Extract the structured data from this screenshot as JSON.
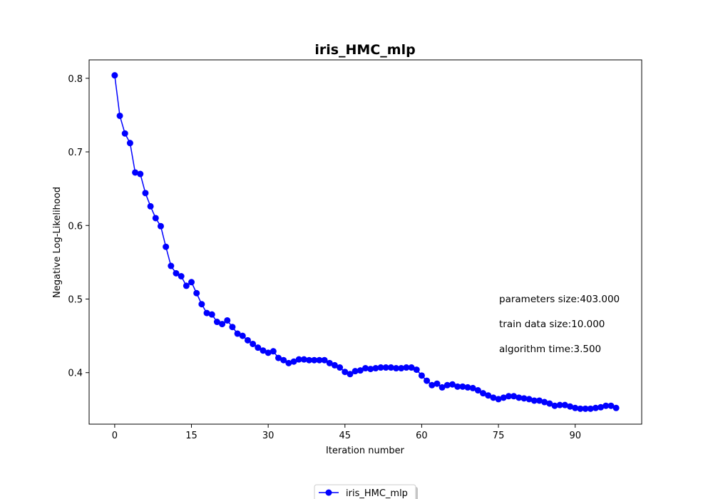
{
  "chart_data": {
    "type": "line",
    "title": "iris_HMC_mlp",
    "xlabel": "Iteration number",
    "ylabel": "Negative Log-Likelihood",
    "xlim": [
      -5,
      103
    ],
    "ylim": [
      0.33,
      0.825
    ],
    "xticks": [
      0,
      15,
      30,
      45,
      60,
      75,
      90
    ],
    "yticks": [
      0.4,
      0.5,
      0.6,
      0.7,
      0.8
    ],
    "ytick_labels": [
      "0.4",
      "0.5",
      "0.6",
      "0.7",
      "0.8"
    ],
    "grid": false,
    "legend_placement": "bottom-center",
    "series": [
      {
        "name": "iris_HMC_mlp",
        "color": "#0000ff",
        "marker": "circle",
        "x": [
          0,
          1,
          2,
          3,
          4,
          5,
          6,
          7,
          8,
          9,
          10,
          11,
          12,
          13,
          14,
          15,
          16,
          17,
          18,
          19,
          20,
          21,
          22,
          23,
          24,
          25,
          26,
          27,
          28,
          29,
          30,
          31,
          32,
          33,
          34,
          35,
          36,
          37,
          38,
          39,
          40,
          41,
          42,
          43,
          44,
          45,
          46,
          47,
          48,
          49,
          50,
          51,
          52,
          53,
          54,
          55,
          56,
          57,
          58,
          59,
          60,
          61,
          62,
          63,
          64,
          65,
          66,
          67,
          68,
          69,
          70,
          71,
          72,
          73,
          74,
          75,
          76,
          77,
          78,
          79,
          80,
          81,
          82,
          83,
          84,
          85,
          86,
          87,
          88,
          89,
          90,
          91,
          92,
          93,
          94,
          95,
          96,
          97,
          98
        ],
        "values": [
          0.804,
          0.749,
          0.725,
          0.712,
          0.672,
          0.67,
          0.644,
          0.626,
          0.61,
          0.599,
          0.571,
          0.545,
          0.535,
          0.531,
          0.518,
          0.523,
          0.508,
          0.493,
          0.481,
          0.479,
          0.469,
          0.466,
          0.471,
          0.462,
          0.453,
          0.45,
          0.444,
          0.439,
          0.434,
          0.43,
          0.427,
          0.429,
          0.42,
          0.417,
          0.413,
          0.415,
          0.418,
          0.418,
          0.417,
          0.417,
          0.417,
          0.417,
          0.413,
          0.41,
          0.407,
          0.401,
          0.398,
          0.402,
          0.403,
          0.406,
          0.405,
          0.406,
          0.407,
          0.407,
          0.407,
          0.406,
          0.406,
          0.407,
          0.407,
          0.404,
          0.396,
          0.389,
          0.383,
          0.385,
          0.38,
          0.383,
          0.384,
          0.381,
          0.381,
          0.38,
          0.379,
          0.376,
          0.372,
          0.369,
          0.366,
          0.364,
          0.366,
          0.368,
          0.368,
          0.366,
          0.365,
          0.364,
          0.362,
          0.362,
          0.36,
          0.358,
          0.355,
          0.356,
          0.356,
          0.354,
          0.352,
          0.351,
          0.351,
          0.351,
          0.352,
          0.353,
          0.355,
          0.355,
          0.352
        ]
      }
    ],
    "annotations": [
      "parameters size:403.000",
      "train data size:10.000",
      "algorithm time:3.500"
    ]
  }
}
